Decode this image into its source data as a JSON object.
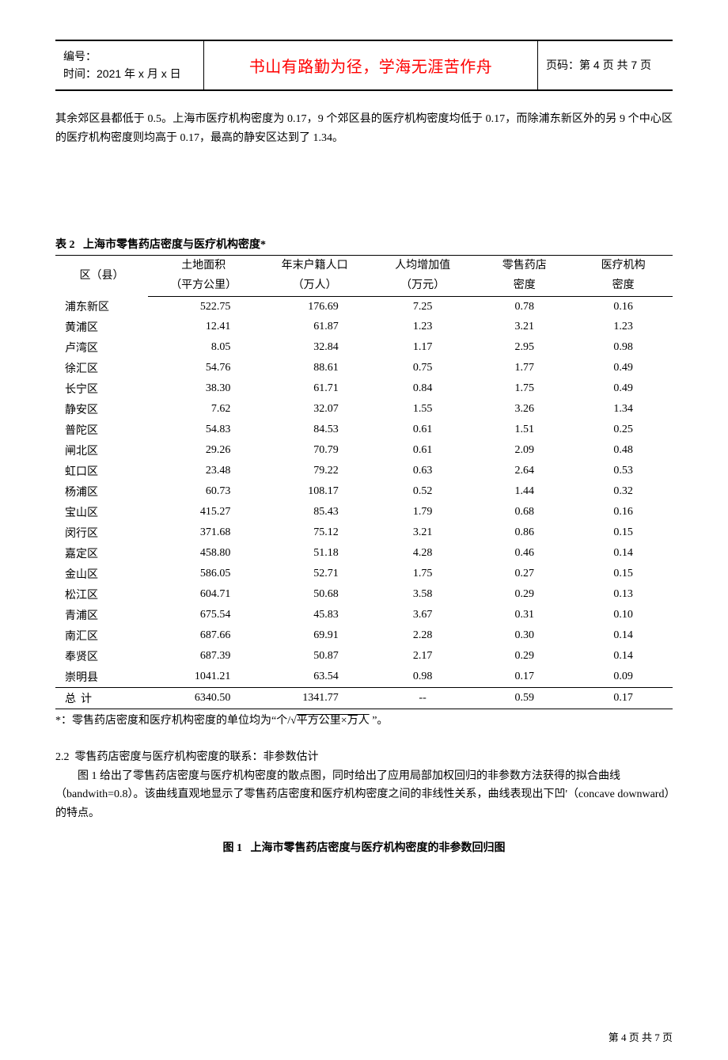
{
  "header": {
    "serial_label": "编号：",
    "time_label": "时间：",
    "time_value": "2021 年 x 月 x 日",
    "motto": "书山有路勤为径，学海无涯苦作舟",
    "page_label": "页码：",
    "page_value": "第 4 页  共 7 页"
  },
  "intro": "其余郊区县都低于 0.5。上海市医疗机构密度为 0.17，9 个郊区县的医疗机构密度均低于 0.17，而除浦东新区外的另 9 个中心区的医疗机构密度则均高于 0.17，最高的静安区达到了 1.34。",
  "table_caption_prefix": "表 2",
  "table_caption": "上海市零售药店密度与医疗机构密度*",
  "columns": [
    {
      "h1": "区（县）",
      "h2": ""
    },
    {
      "h1": "土地面积",
      "h2": "（平方公里）"
    },
    {
      "h1": "年末户籍人口",
      "h2": "（万人）"
    },
    {
      "h1": "人均增加值",
      "h2": "（万元）"
    },
    {
      "h1": "零售药店",
      "h2": "密度"
    },
    {
      "h1": "医疗机构",
      "h2": "密度"
    }
  ],
  "rows": [
    [
      "浦东新区",
      "522.75",
      "176.69",
      "7.25",
      "0.78",
      "0.16"
    ],
    [
      "黄浦区",
      "12.41",
      "61.87",
      "1.23",
      "3.21",
      "1.23"
    ],
    [
      "卢湾区",
      "8.05",
      "32.84",
      "1.17",
      "2.95",
      "0.98"
    ],
    [
      "徐汇区",
      "54.76",
      "88.61",
      "0.75",
      "1.77",
      "0.49"
    ],
    [
      "长宁区",
      "38.30",
      "61.71",
      "0.84",
      "1.75",
      "0.49"
    ],
    [
      "静安区",
      "7.62",
      "32.07",
      "1.55",
      "3.26",
      "1.34"
    ],
    [
      "普陀区",
      "54.83",
      "84.53",
      "0.61",
      "1.51",
      "0.25"
    ],
    [
      "闸北区",
      "29.26",
      "70.79",
      "0.61",
      "2.09",
      "0.48"
    ],
    [
      "虹口区",
      "23.48",
      "79.22",
      "0.63",
      "2.64",
      "0.53"
    ],
    [
      "杨浦区",
      "60.73",
      "108.17",
      "0.52",
      "1.44",
      "0.32"
    ],
    [
      "宝山区",
      "415.27",
      "85.43",
      "1.79",
      "0.68",
      "0.16"
    ],
    [
      "闵行区",
      "371.68",
      "75.12",
      "3.21",
      "0.86",
      "0.15"
    ],
    [
      "嘉定区",
      "458.80",
      "51.18",
      "4.28",
      "0.46",
      "0.14"
    ],
    [
      "金山区",
      "586.05",
      "52.71",
      "1.75",
      "0.27",
      "0.15"
    ],
    [
      "松江区",
      "604.71",
      "50.68",
      "3.58",
      "0.29",
      "0.13"
    ],
    [
      "青浦区",
      "675.54",
      "45.83",
      "3.67",
      "0.31",
      "0.10"
    ],
    [
      "南汇区",
      "687.66",
      "69.91",
      "2.28",
      "0.30",
      "0.14"
    ],
    [
      "奉贤区",
      "687.39",
      "50.87",
      "2.17",
      "0.29",
      "0.14"
    ],
    [
      "崇明县",
      "1041.21",
      "63.54",
      "0.98",
      "0.17",
      "0.09"
    ]
  ],
  "total_row": [
    "总   计",
    "6340.50",
    "1341.77",
    "--",
    "0.59",
    "0.17"
  ],
  "footnote_prefix": "*：零售药店密度和医疗机构密度的单位均为“个/",
  "footnote_sqrt": "√",
  "footnote_under": "平方公里×万人",
  "footnote_suffix": " ”。",
  "section_num": "2.2",
  "section_title": "零售药店密度与医疗机构密度的联系：非参数估计",
  "section_body": "图 1 给出了零售药店密度与医疗机构密度的散点图，同时给出了应用局部加权回归的非参数方法获得的拟合曲线（bandwith=0.8）。该曲线直观地显示了零售药店密度和医疗机构密度之间的非线性关系，曲线表现出下凹'（concave downward）的特点。",
  "fig_caption_prefix": "图 1",
  "fig_caption": "上海市零售药店密度与医疗机构密度的非参数回归图",
  "footer": "第 4 页 共 7 页"
}
